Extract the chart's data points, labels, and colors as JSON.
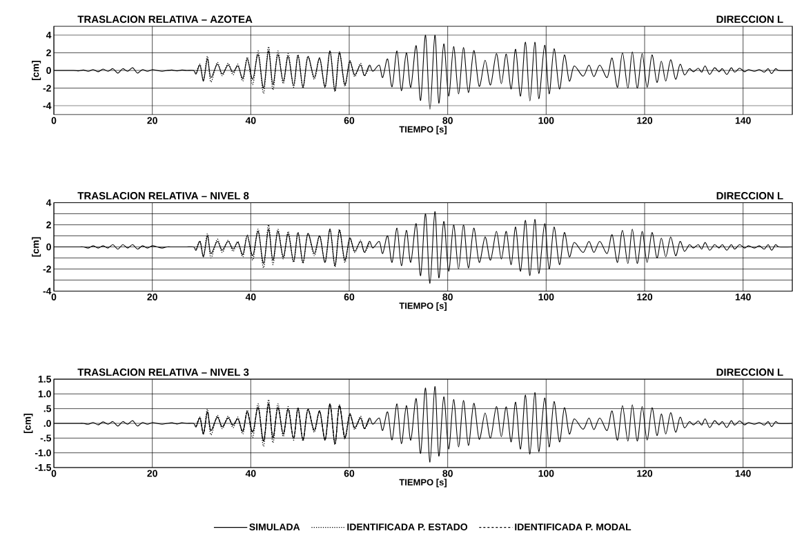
{
  "chart_data": [
    {
      "type": "line",
      "title": "TRASLACION RELATIVA – AZOTEA",
      "subtitle": "DIRECCION L",
      "xlabel": "TIEMPO [s]",
      "ylabel": "[cm]",
      "xlim": [
        0,
        150
      ],
      "ylim": [
        -5,
        5
      ],
      "xticks": [
        0,
        20,
        40,
        60,
        80,
        100,
        120,
        140
      ],
      "yticks": [
        -4,
        -2,
        0,
        2,
        4
      ],
      "grid": true,
      "series": [
        {
          "color": "#000000",
          "line_style": "solid",
          "x": [
            0,
            4,
            5,
            6,
            7,
            8,
            9,
            10,
            11,
            12,
            13,
            14,
            15,
            16,
            17,
            18,
            19,
            20,
            21,
            22,
            23,
            24,
            25,
            26,
            27,
            28.4,
            28.9,
            29.7,
            30.4,
            31.2,
            31.9,
            33.2,
            34.2,
            35.4,
            36.4,
            37.4,
            38.4,
            39.3,
            40.4,
            41.5,
            42.6,
            43.6,
            44.5,
            45.5,
            46.6,
            47.6,
            48.7,
            49.6,
            50.6,
            51.6,
            52.9,
            54.0,
            55.1,
            56.1,
            57.1,
            58.0,
            59.1,
            60.1,
            61.1,
            62.3,
            63.1,
            64.1,
            64.8,
            66.1,
            66.8,
            67.8,
            68.7,
            69.7,
            70.6,
            71.6,
            72.5,
            73.6,
            74.5,
            75.5,
            76.4,
            77.4,
            78.2,
            79.2,
            80.2,
            81.2,
            82.2,
            83.2,
            84.2,
            85.3,
            86.4,
            87.6,
            88.7,
            89.9,
            90.9,
            91.9,
            92.9,
            93.8,
            94.8,
            95.8,
            96.7,
            97.7,
            98.5,
            99.7,
            100.6,
            101.6,
            102.7,
            103.7,
            104.7,
            105.7,
            107.5,
            108.7,
            109.7,
            110.9,
            112.4,
            113.4,
            114.5,
            115.5,
            116.6,
            117.5,
            118.5,
            119.5,
            120.5,
            121.5,
            122.5,
            123.4,
            124.3,
            125.3,
            126.3,
            127.2,
            128.1,
            129.1,
            129.9,
            130.9,
            131.6,
            132.3,
            133.2,
            134.2,
            135.1,
            135.8,
            136.7,
            137.6,
            138.3,
            139.3,
            140.3,
            141.1,
            142.3,
            143.3,
            144.3,
            145.1,
            145.8,
            146.6,
            147.3,
            150
          ],
          "values": [
            0,
            0,
            -0.05,
            0.05,
            -0.1,
            0.1,
            -0.15,
            0.15,
            -0.1,
            0.2,
            -0.3,
            0.2,
            -0.1,
            0.3,
            -0.3,
            0.1,
            -0.1,
            0.1,
            0,
            -0.1,
            0,
            0.05,
            -0.05,
            0.05,
            0,
            0,
            -0.4,
            0.6,
            -1.2,
            1.3,
            -0.8,
            0.7,
            -0.4,
            0.6,
            -0.2,
            0.5,
            -0.9,
            1.3,
            -1.0,
            1.8,
            -2.0,
            2.2,
            -1.6,
            1.8,
            -1.2,
            1.6,
            -1.7,
            1.7,
            -1.85,
            1.55,
            -0.8,
            1.4,
            -1.85,
            2.2,
            -2.3,
            2.0,
            -1.6,
            1.0,
            -0.5,
            0.6,
            -0.6,
            0.6,
            -0.1,
            0.6,
            -0.8,
            1.3,
            -1.85,
            2.2,
            -2.3,
            2.0,
            -1.9,
            2.8,
            -3.4,
            4.0,
            -4.4,
            4.0,
            -3.7,
            3.0,
            -2.9,
            2.7,
            -2.65,
            2.6,
            -2.5,
            2.25,
            -1.8,
            1.15,
            -1.65,
            1.9,
            -1.5,
            1.85,
            -2.1,
            2.4,
            -2.9,
            3.2,
            -3.45,
            3.2,
            -3.2,
            2.85,
            -2.65,
            2.45,
            -2.1,
            1.75,
            -1.2,
            0.5,
            -0.65,
            0.6,
            -0.7,
            0.6,
            -0.8,
            1.4,
            -1.9,
            2.0,
            -2.0,
            2.1,
            -2.0,
            1.9,
            -1.9,
            1.75,
            -1.35,
            1.05,
            -1.2,
            1.2,
            -1.0,
            0.7,
            -0.5,
            0.2,
            -0.15,
            0.25,
            -0.2,
            0.5,
            -0.45,
            0.3,
            -0.15,
            0.2,
            -0.45,
            0.3,
            -0.2,
            0.25,
            -0.15,
            0.1,
            -0.1,
            0.1,
            -0.2,
            0.2,
            -0.35,
            0.2,
            0,
            0
          ]
        },
        {
          "color": "#000000",
          "line_style": "dotted",
          "x": [
            28.9,
            29.7,
            30.4,
            31.2,
            31.9,
            33.2,
            34.2,
            35.4,
            36.4,
            37.4,
            38.4,
            39.3,
            40.4,
            41.5,
            42.6,
            43.6,
            44.5,
            45.5,
            46.6,
            47.6,
            48.7,
            49.6,
            50.6,
            51.6,
            52.9,
            54.0,
            55.1,
            56.1,
            57.1,
            58.0,
            59.1,
            60.1,
            61.1,
            62.3,
            63.1,
            64.1
          ],
          "values": [
            -0.3,
            0.7,
            -1.0,
            1.6,
            -1.3,
            0.9,
            -0.6,
            0.8,
            -0.5,
            0.7,
            -1.2,
            1.5,
            -1.6,
            2.2,
            -2.6,
            2.7,
            -2.2,
            2.2,
            -1.5,
            1.9,
            -1.9,
            1.8,
            -2.0,
            1.6,
            -1.0,
            1.4,
            -1.9,
            2.2,
            -2.4,
            2.1,
            -1.8,
            1.1,
            -0.7,
            0.8,
            -0.6,
            0.5
          ]
        }
      ]
    },
    {
      "type": "line",
      "title": "TRASLACION RELATIVA – NIVEL 8",
      "subtitle": "DIRECCION L",
      "xlabel": "TIEMPO [s]",
      "ylabel": "[cm]",
      "xlim": [
        0,
        150
      ],
      "ylim": [
        -4,
        4
      ],
      "xticks": [
        0,
        20,
        40,
        60,
        80,
        100,
        120,
        140
      ],
      "yticks": [
        -4,
        {
          "value": -3,
          "label": null
        },
        -2,
        {
          "value": -1,
          "label": null
        },
        0,
        {
          "value": 1,
          "label": null
        },
        2,
        {
          "value": 3,
          "label": null
        },
        4
      ],
      "grid": true,
      "series": [
        {
          "color": "#000000",
          "line_style": "solid",
          "x": [
            0,
            4,
            5,
            6,
            7,
            8,
            9,
            10,
            11,
            12,
            13,
            14,
            15,
            16,
            17,
            18,
            19,
            20,
            21,
            22,
            23,
            24,
            25,
            26,
            27,
            28.4,
            28.9,
            29.7,
            30.4,
            31.2,
            31.9,
            33.2,
            34.2,
            35.4,
            36.4,
            37.4,
            38.4,
            39.3,
            40.4,
            41.5,
            42.6,
            43.6,
            44.5,
            45.5,
            46.6,
            47.6,
            48.7,
            49.6,
            50.6,
            51.6,
            52.9,
            54.0,
            55.1,
            56.1,
            57.1,
            58.0,
            59.1,
            60.1,
            61.1,
            62.3,
            63.1,
            64.1,
            64.8,
            66.1,
            66.8,
            67.8,
            68.7,
            69.7,
            70.6,
            71.6,
            72.5,
            73.6,
            74.5,
            75.5,
            76.4,
            77.4,
            78.2,
            79.2,
            80.2,
            81.2,
            82.2,
            83.2,
            84.2,
            85.3,
            86.4,
            87.6,
            88.7,
            89.9,
            90.9,
            91.9,
            92.9,
            93.8,
            94.8,
            95.8,
            96.7,
            97.7,
            98.5,
            99.7,
            100.6,
            101.6,
            102.7,
            103.7,
            104.7,
            105.7,
            107.5,
            108.7,
            109.7,
            110.9,
            112.4,
            113.4,
            114.5,
            115.5,
            116.6,
            117.5,
            118.5,
            119.5,
            120.5,
            121.5,
            122.5,
            123.4,
            124.3,
            125.3,
            126.3,
            127.2,
            128.1,
            129.1,
            129.9,
            130.9,
            131.6,
            132.3,
            133.2,
            134.2,
            135.1,
            135.8,
            136.7,
            137.6,
            138.3,
            139.3,
            140.3,
            141.1,
            142.3,
            143.3,
            144.3,
            145.1,
            145.8,
            146.6,
            147.3,
            150
          ],
          "values": [
            0,
            0,
            0,
            0,
            -0.1,
            0.1,
            -0.1,
            0.1,
            -0.1,
            0.2,
            -0.2,
            0.2,
            -0.1,
            0.2,
            -0.2,
            0.1,
            -0.1,
            0.1,
            0,
            -0.1,
            0,
            0,
            0,
            0,
            0,
            0,
            -0.3,
            0.5,
            -0.9,
            1.0,
            -0.6,
            0.5,
            -0.3,
            0.5,
            -0.2,
            0.4,
            -0.7,
            1.0,
            -0.8,
            1.4,
            -1.5,
            1.6,
            -1.2,
            1.4,
            -0.9,
            1.2,
            -1.3,
            1.3,
            -1.4,
            1.2,
            -0.6,
            1.0,
            -1.4,
            1.6,
            -1.7,
            1.5,
            -1.2,
            0.8,
            -0.4,
            0.5,
            -0.5,
            0.5,
            -0.1,
            0.5,
            -0.6,
            1.0,
            -1.4,
            1.7,
            -1.7,
            1.5,
            -1.4,
            2.1,
            -2.6,
            3.0,
            -3.3,
            3.2,
            -2.8,
            2.3,
            -2.2,
            2.0,
            -2.0,
            2.0,
            -1.9,
            1.7,
            -1.4,
            0.9,
            -1.2,
            1.4,
            -1.1,
            1.4,
            -1.6,
            1.8,
            -2.2,
            2.4,
            -2.6,
            2.5,
            -2.4,
            2.1,
            -2.0,
            1.8,
            -1.6,
            1.3,
            -0.9,
            0.4,
            -0.5,
            0.5,
            -0.5,
            0.5,
            -0.6,
            1.1,
            -1.4,
            1.5,
            -1.5,
            1.6,
            -1.5,
            1.4,
            -1.4,
            1.3,
            -1.0,
            0.8,
            -0.9,
            0.9,
            -0.8,
            0.5,
            -0.4,
            0.2,
            -0.1,
            0.2,
            -0.2,
            0.4,
            -0.3,
            0.2,
            -0.1,
            0.2,
            -0.3,
            0.2,
            -0.2,
            0.2,
            -0.1,
            0.1,
            -0.1,
            0.1,
            -0.2,
            0.2,
            -0.3,
            0.2,
            0,
            0
          ]
        },
        {
          "color": "#000000",
          "line_style": "dotted",
          "x": [
            28.9,
            29.7,
            30.4,
            31.2,
            31.9,
            33.2,
            34.2,
            35.4,
            36.4,
            37.4,
            38.4,
            39.3,
            40.4,
            41.5,
            42.6,
            43.6,
            44.5,
            45.5,
            46.6,
            47.6,
            48.7,
            49.6,
            50.6,
            51.6,
            52.9,
            54.0,
            55.1,
            56.1,
            57.1,
            58.0,
            59.1,
            60.1,
            61.1,
            62.3,
            63.1,
            64.1
          ],
          "values": [
            -0.2,
            0.5,
            -0.8,
            1.2,
            -1.0,
            0.7,
            -0.5,
            0.6,
            -0.4,
            0.5,
            -0.9,
            1.1,
            -1.2,
            1.6,
            -1.9,
            2.0,
            -1.6,
            1.6,
            -1.1,
            1.4,
            -1.4,
            1.3,
            -1.5,
            1.2,
            -0.8,
            1.0,
            -1.4,
            1.6,
            -1.8,
            1.6,
            -1.4,
            0.8,
            -0.5,
            0.6,
            -0.5,
            0.4
          ]
        }
      ]
    },
    {
      "type": "line",
      "title": "TRASLACION RELATIVA – NIVEL 3",
      "subtitle": "DIRECCION L",
      "xlabel": "TIEMPO [s]",
      "ylabel": "[cm]",
      "xlim": [
        0,
        150
      ],
      "ylim": [
        -1.5,
        1.5
      ],
      "xticks": [
        0,
        20,
        40,
        60,
        80,
        100,
        120,
        140
      ],
      "yticks": [
        {
          "value": -1.5,
          "label": "-1.5"
        },
        {
          "value": -1.0,
          "label": "-1.0"
        },
        {
          "value": -0.5,
          "label": "-.5"
        },
        {
          "value": 0,
          "label": ".0"
        },
        {
          "value": 0.5,
          "label": ".5"
        },
        {
          "value": 1.0,
          "label": "1.0"
        },
        {
          "value": 1.5,
          "label": "1.5"
        }
      ],
      "grid": true,
      "legend": "bottom",
      "series": [
        {
          "name": "SIMULADA",
          "color": "#000000",
          "line_style": "solid",
          "x": [
            0,
            4,
            5,
            6,
            7,
            8,
            9,
            10,
            11,
            12,
            13,
            14,
            15,
            16,
            17,
            18,
            19,
            20,
            21,
            22,
            23,
            24,
            25,
            26,
            27,
            28.4,
            28.9,
            29.7,
            30.4,
            31.2,
            31.9,
            33.2,
            34.2,
            35.4,
            36.4,
            37.4,
            38.4,
            39.3,
            40.4,
            41.5,
            42.6,
            43.6,
            44.5,
            45.5,
            46.6,
            47.6,
            48.7,
            49.6,
            50.6,
            51.6,
            52.9,
            54.0,
            55.1,
            56.1,
            57.1,
            58.0,
            59.1,
            60.1,
            61.1,
            62.3,
            63.1,
            64.1,
            64.8,
            66.1,
            66.8,
            67.8,
            68.7,
            69.7,
            70.6,
            71.6,
            72.5,
            73.6,
            74.5,
            75.5,
            76.4,
            77.4,
            78.2,
            79.2,
            80.2,
            81.2,
            82.2,
            83.2,
            84.2,
            85.3,
            86.4,
            87.6,
            88.7,
            89.9,
            90.9,
            91.9,
            92.9,
            93.8,
            94.8,
            95.8,
            96.7,
            97.7,
            98.5,
            99.7,
            100.6,
            101.6,
            102.7,
            103.7,
            104.7,
            105.7,
            107.5,
            108.7,
            109.7,
            110.9,
            112.4,
            113.4,
            114.5,
            115.5,
            116.6,
            117.5,
            118.5,
            119.5,
            120.5,
            121.5,
            122.5,
            123.4,
            124.3,
            125.3,
            126.3,
            127.2,
            128.1,
            129.1,
            129.9,
            130.9,
            131.6,
            132.3,
            133.2,
            134.2,
            135.1,
            135.8,
            136.7,
            137.6,
            138.3,
            139.3,
            140.3,
            141.1,
            142.3,
            143.3,
            144.3,
            145.1,
            145.8,
            146.6,
            147.3,
            150
          ],
          "values": [
            0,
            0,
            0,
            0,
            -0.03,
            0.03,
            -0.05,
            0.05,
            -0.03,
            0.06,
            -0.09,
            0.06,
            -0.03,
            0.09,
            -0.09,
            0.03,
            -0.03,
            0.03,
            0,
            -0.03,
            0,
            0.02,
            -0.02,
            0.02,
            0,
            0,
            -0.12,
            0.18,
            -0.36,
            0.39,
            -0.24,
            0.21,
            -0.12,
            0.18,
            -0.06,
            0.15,
            -0.27,
            0.39,
            -0.3,
            0.54,
            -0.6,
            0.66,
            -0.48,
            0.54,
            -0.36,
            0.48,
            -0.51,
            0.51,
            -0.56,
            0.47,
            -0.24,
            0.42,
            -0.56,
            0.66,
            -0.69,
            0.6,
            -0.48,
            0.3,
            -0.15,
            0.18,
            -0.18,
            0.18,
            -0.03,
            0.18,
            -0.24,
            0.39,
            -0.56,
            0.66,
            -0.69,
            0.6,
            -0.57,
            0.84,
            -1.02,
            1.2,
            -1.32,
            1.25,
            -1.11,
            0.9,
            -0.87,
            0.81,
            -0.8,
            0.78,
            -0.75,
            0.68,
            -0.54,
            0.35,
            -0.5,
            0.57,
            -0.45,
            0.56,
            -0.63,
            0.72,
            -0.87,
            0.96,
            -1.04,
            1.05,
            -0.96,
            0.86,
            -0.8,
            0.74,
            -0.63,
            0.53,
            -0.36,
            0.15,
            -0.2,
            0.18,
            -0.21,
            0.18,
            -0.24,
            0.42,
            -0.57,
            0.6,
            -0.6,
            0.63,
            -0.6,
            0.57,
            -0.57,
            0.53,
            -0.41,
            0.32,
            -0.36,
            0.36,
            -0.3,
            0.21,
            -0.15,
            0.06,
            -0.05,
            0.08,
            -0.06,
            0.15,
            -0.14,
            0.09,
            -0.05,
            0.06,
            -0.14,
            0.09,
            -0.06,
            0.08,
            -0.05,
            0.03,
            -0.03,
            0.03,
            -0.06,
            0.06,
            -0.11,
            0.06,
            0,
            0
          ]
        },
        {
          "name": "IDENTIFICADA P. ESTADO",
          "color": "#000000",
          "line_style": "dotted",
          "x": [
            28.9,
            29.7,
            30.4,
            31.2,
            31.9,
            33.2,
            34.2,
            35.4,
            36.4,
            37.4,
            38.4,
            39.3,
            40.4,
            41.5,
            42.6,
            43.6,
            44.5,
            45.5,
            46.6,
            47.6,
            48.7,
            49.6,
            50.6,
            51.6,
            52.9,
            54.0,
            55.1,
            56.1,
            57.1,
            58.0,
            59.1,
            60.1,
            61.1,
            62.3,
            63.1,
            64.1
          ],
          "values": [
            -0.09,
            0.21,
            -0.3,
            0.48,
            -0.39,
            0.27,
            -0.18,
            0.24,
            -0.15,
            0.21,
            -0.36,
            0.45,
            -0.48,
            0.66,
            -0.78,
            0.81,
            -0.66,
            0.66,
            -0.45,
            0.57,
            -0.57,
            0.54,
            -0.6,
            0.48,
            -0.3,
            0.42,
            -0.57,
            0.66,
            -0.72,
            0.63,
            -0.54,
            0.33,
            -0.21,
            0.24,
            -0.18,
            0.15
          ]
        },
        {
          "name": "IDENTIFICADA P. MODAL",
          "color": "#000000",
          "line_style": "dashed",
          "x": [
            28.9,
            29.7,
            30.4,
            31.2,
            31.9,
            33.2,
            34.2,
            35.4,
            36.4,
            37.4,
            38.4,
            39.3,
            40.4,
            41.5,
            42.6,
            43.6,
            44.5,
            45.5,
            46.6,
            47.6,
            48.7,
            49.6,
            50.6,
            51.6,
            52.9,
            54.0,
            55.1,
            56.1,
            57.1,
            58.0,
            59.1,
            60.1,
            61.1,
            62.3,
            63.1,
            64.1
          ],
          "values": [
            -0.12,
            0.18,
            -0.36,
            0.39,
            -0.24,
            0.21,
            -0.12,
            0.18,
            -0.06,
            0.15,
            -0.27,
            0.39,
            -0.3,
            0.54,
            -0.6,
            0.66,
            -0.48,
            0.54,
            -0.36,
            0.48,
            -0.51,
            0.51,
            -0.56,
            0.47,
            -0.24,
            0.42,
            -0.56,
            0.66,
            -0.69,
            0.6,
            -0.48,
            0.3,
            -0.15,
            0.18,
            -0.18,
            0.18
          ]
        }
      ]
    }
  ]
}
